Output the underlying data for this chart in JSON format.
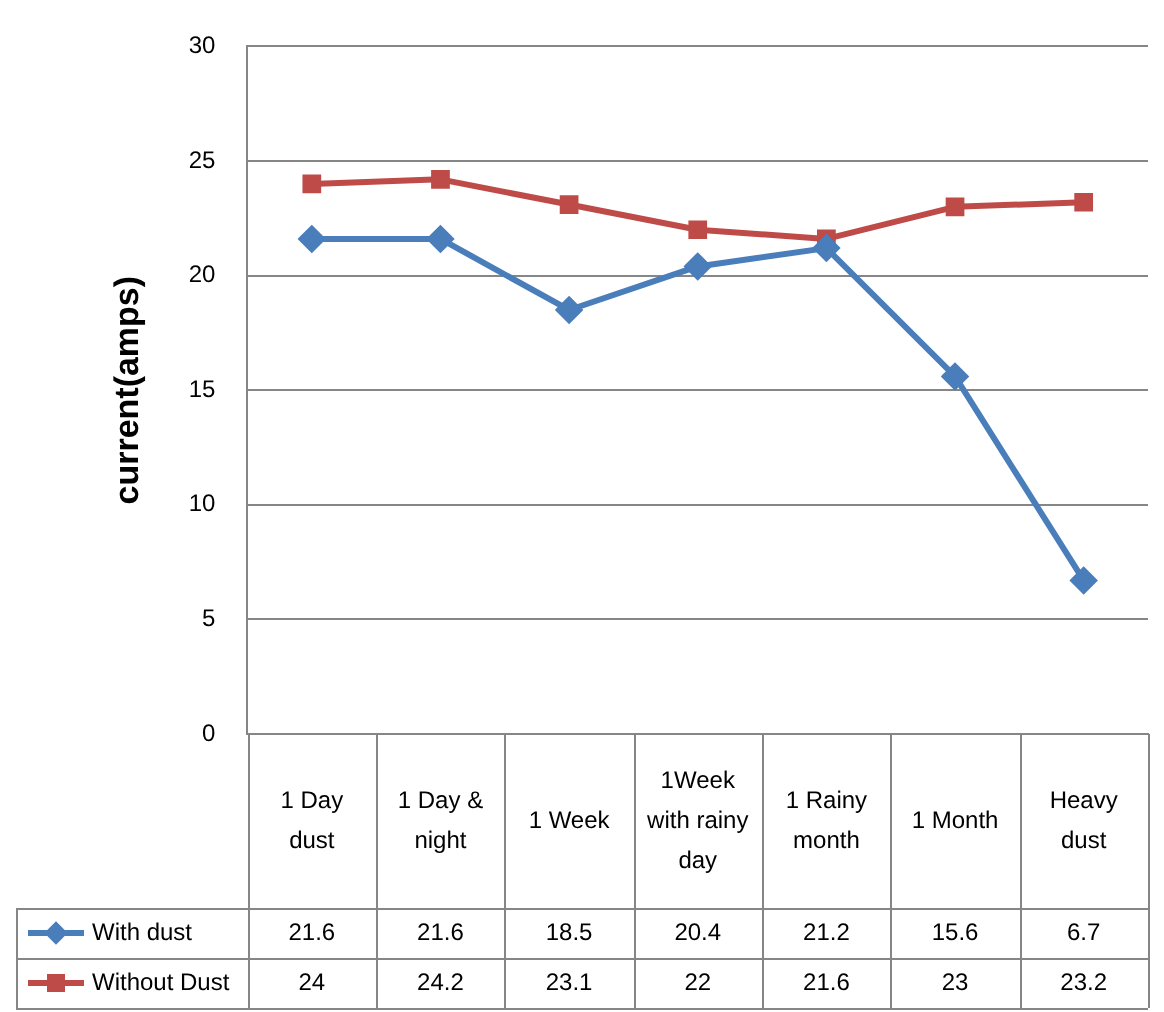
{
  "chart_data": {
    "type": "line",
    "ylabel": "current(amps)",
    "categories": [
      "1 Day dust",
      "1 Day & night",
      "1 Week",
      "1Week with rainy day",
      "1 Rainy month",
      "1 Month",
      "Heavy dust"
    ],
    "series": [
      {
        "name": "With dust",
        "color": "#4a7ebb",
        "marker": "diamond",
        "values": [
          21.6,
          21.6,
          18.5,
          20.4,
          21.2,
          15.6,
          6.7
        ]
      },
      {
        "name": "Without Dust",
        "color": "#be4b48",
        "marker": "square",
        "values": [
          24,
          24.2,
          23.1,
          22,
          21.6,
          23,
          23.2
        ]
      }
    ],
    "ylim": [
      0,
      30
    ],
    "yticks": [
      0,
      5,
      10,
      15,
      20,
      25,
      30
    ],
    "grid": "y",
    "legend": "bottom",
    "data_labels": true
  }
}
